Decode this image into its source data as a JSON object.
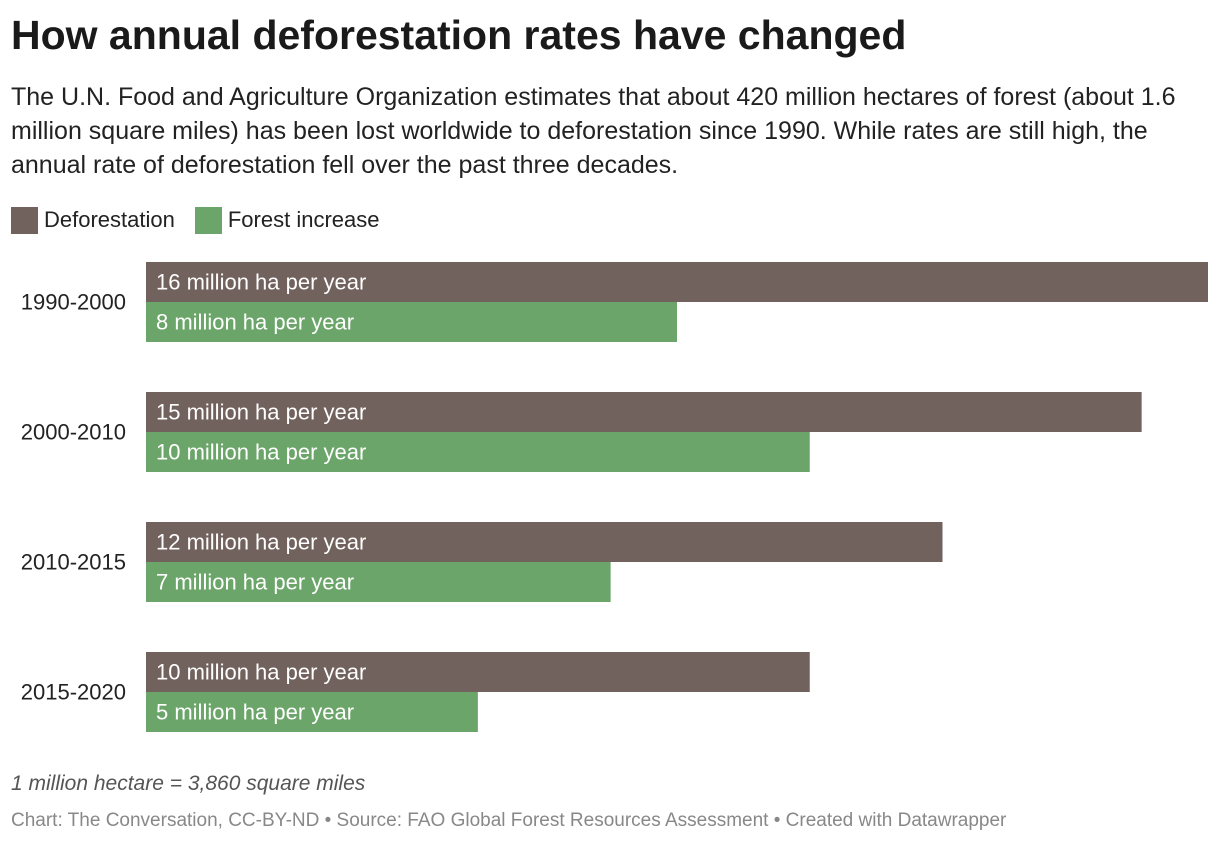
{
  "title": "How annual deforestation rates have changed",
  "subtitle": "The U.N. Food and Agriculture Organization estimates that about 420 million hectares of forest (about 1.6 million square miles) has been lost worldwide to deforestation since 1990. While rates are still high, the annual rate of deforestation fell over the past three decades.",
  "legend": [
    {
      "label": "Deforestation",
      "color": "#72625d"
    },
    {
      "label": "Forest increase",
      "color": "#6ba569"
    }
  ],
  "note": "1 million hectare = 3,860 square miles",
  "footer": "Chart: The Conversation, CC-BY-ND • Source: FAO Global Forest Resources Assessment  • Created with Datawrapper",
  "chart_data": {
    "type": "bar",
    "orientation": "horizontal",
    "categories": [
      "1990-2000",
      "2000-2010",
      "2010-2015",
      "2015-2020"
    ],
    "unit": "million ha per year",
    "xlim": [
      0,
      16
    ],
    "grid": false,
    "legend_position": "top-left",
    "series": [
      {
        "name": "Deforestation",
        "color": "#72625d",
        "values": [
          16,
          15,
          12,
          10
        ],
        "labels": [
          "16 million ha per year",
          "15 million ha per year",
          "12 million ha per year",
          "10 million ha per year"
        ]
      },
      {
        "name": "Forest increase",
        "color": "#6ba569",
        "values": [
          8,
          10,
          7,
          5
        ],
        "labels": [
          "8 million ha per year",
          "10 million ha per year",
          "7 million ha per year",
          "5 million ha per year"
        ]
      }
    ]
  }
}
